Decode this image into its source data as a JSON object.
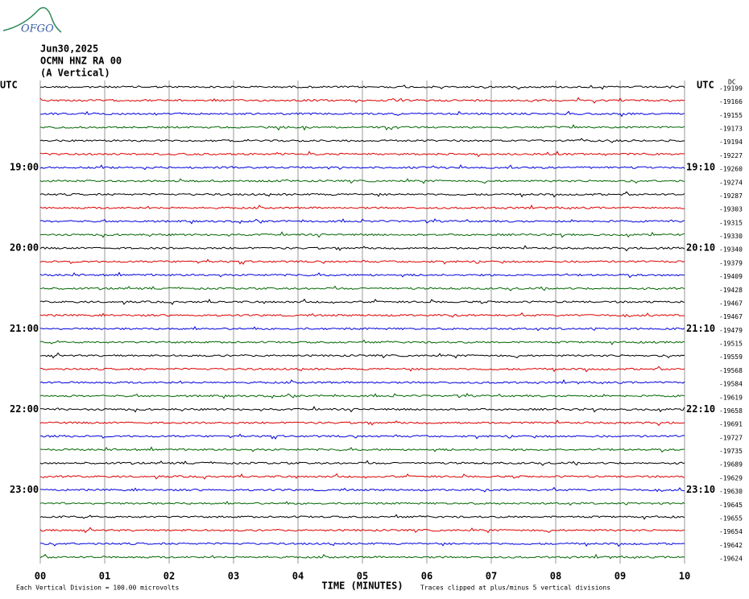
{
  "header": {
    "logo": "OFGO",
    "date": "Jun30,2025",
    "station": "OCMN HNZ RA 00",
    "component": "(A Vertical)"
  },
  "left_axis": {
    "title": "UTC",
    "hour_labels": [
      "19:00",
      "20:00",
      "21:00",
      "22:00",
      "23:00"
    ]
  },
  "right_axis": {
    "title": "UTC",
    "offset_title": "DC",
    "hour_labels": [
      "19:10",
      "20:10",
      "21:10",
      "22:10",
      "23:10"
    ],
    "offsets": [
      "-19199",
      "-19166",
      "-19155",
      "-19173",
      "-19194",
      "-19227",
      "-19260",
      "-19274",
      "-19287",
      "-19303",
      "-19315",
      "-19330",
      "-19340",
      "-19379",
      "-19409",
      "-19428",
      "-19467",
      "-19467",
      "-19479",
      "-19515",
      "-19559",
      "-19568",
      "-19584",
      "-19619",
      "-19658",
      "-19691",
      "-19727",
      "-19735",
      "-19689",
      "-19629",
      "-19630",
      "-19645",
      "-19655",
      "-19654",
      "-19642",
      "-19624"
    ]
  },
  "x_axis": {
    "title": "TIME (MINUTES)",
    "ticks": [
      "00",
      "01",
      "02",
      "03",
      "04",
      "05",
      "06",
      "07",
      "08",
      "09",
      "10"
    ]
  },
  "footer": {
    "scale_note": "Each Vertical Division =  100.00 microvolts",
    "clip_note": "Traces clipped at plus/minus 5 vertical divisions"
  },
  "trace_colors": [
    "#000000",
    "#dd0000",
    "#0000dd",
    "#006600"
  ]
}
